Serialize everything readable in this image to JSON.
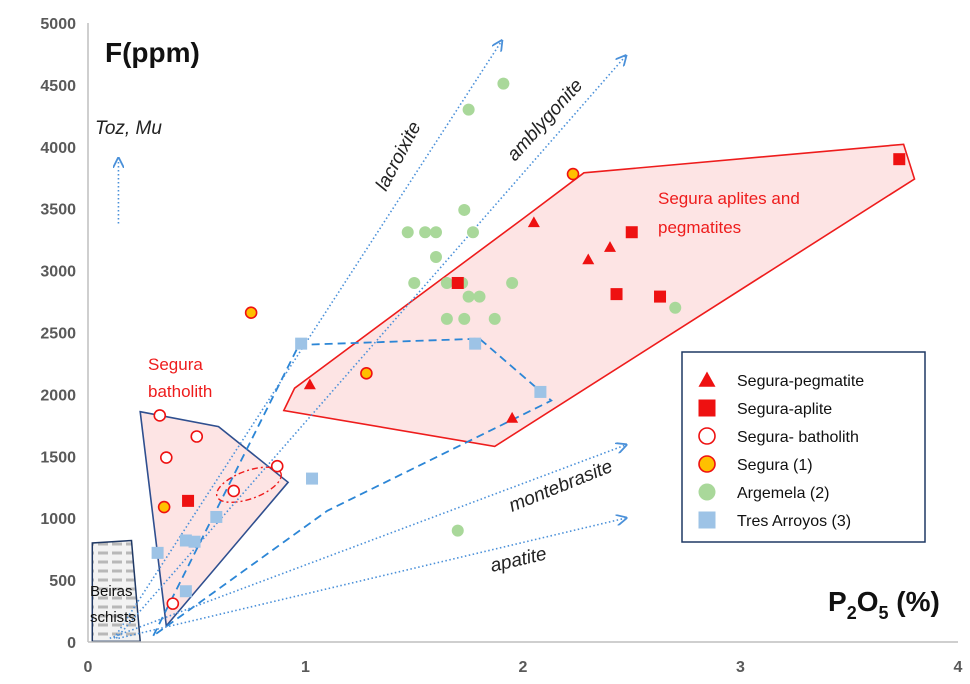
{
  "chart_data": {
    "type": "scatter",
    "title": "",
    "ylabel": "F(ppm)",
    "xlabel_main": "P",
    "xlabel_sub": "2",
    "xlabel_o": "O",
    "xlabel_sub2": "5",
    "xlabel_unit": " (%)",
    "xlim": [
      0,
      4
    ],
    "ylim": [
      0,
      5000
    ],
    "x_ticks": [
      0,
      1,
      2,
      3,
      4
    ],
    "y_ticks": [
      0,
      500,
      1000,
      1500,
      2000,
      2500,
      3000,
      3500,
      4000,
      4500,
      5000
    ],
    "grid": false,
    "legend_position": "right",
    "series": [
      {
        "name": "Segura-pegmatite",
        "marker": "triangle",
        "color": "#ee1111",
        "points": [
          [
            1.02,
            2080
          ],
          [
            1.95,
            1810
          ],
          [
            2.05,
            3390
          ],
          [
            2.3,
            3090
          ],
          [
            2.4,
            3190
          ]
        ]
      },
      {
        "name": "Segura-aplite",
        "marker": "square",
        "color": "#ee1111",
        "points": [
          [
            0.46,
            1140
          ],
          [
            1.7,
            2900
          ],
          [
            2.43,
            2810
          ],
          [
            2.5,
            3310
          ],
          [
            2.63,
            2790
          ],
          [
            3.73,
            3900
          ]
        ]
      },
      {
        "name": "Segura- batholith",
        "marker": "open-circle",
        "color": "#ee1111",
        "points": [
          [
            0.33,
            1830
          ],
          [
            0.36,
            1490
          ],
          [
            0.5,
            1660
          ],
          [
            0.39,
            310
          ],
          [
            0.67,
            1220
          ],
          [
            0.87,
            1420
          ]
        ]
      },
      {
        "name": "Segura (1)",
        "marker": "filled-circle",
        "color": "#ffc000",
        "edge": "#ee1111",
        "points": [
          [
            0.75,
            2660
          ],
          [
            0.35,
            1090
          ],
          [
            1.28,
            2170
          ],
          [
            2.23,
            3780
          ]
        ]
      },
      {
        "name": "Argemela (2)",
        "marker": "filled-circle",
        "color": "#a9d89a",
        "points": [
          [
            1.91,
            4510
          ],
          [
            1.75,
            4300
          ],
          [
            1.47,
            3310
          ],
          [
            1.55,
            3310
          ],
          [
            1.6,
            3310
          ],
          [
            1.73,
            3490
          ],
          [
            1.77,
            3310
          ],
          [
            1.6,
            3110
          ],
          [
            1.5,
            2900
          ],
          [
            1.65,
            2900
          ],
          [
            1.72,
            2900
          ],
          [
            1.75,
            2790
          ],
          [
            1.8,
            2790
          ],
          [
            1.95,
            2900
          ],
          [
            1.65,
            2610
          ],
          [
            1.73,
            2610
          ],
          [
            1.87,
            2610
          ],
          [
            2.7,
            2700
          ],
          [
            1.7,
            900
          ]
        ]
      },
      {
        "name": "Tres Arroyos (3)",
        "marker": "square",
        "color": "#9dc3e6",
        "points": [
          [
            0.98,
            2410
          ],
          [
            1.78,
            2410
          ],
          [
            2.08,
            2020
          ],
          [
            1.03,
            1320
          ],
          [
            0.59,
            1010
          ],
          [
            0.45,
            820
          ],
          [
            0.49,
            810
          ],
          [
            0.32,
            720
          ],
          [
            0.45,
            410
          ]
        ]
      }
    ],
    "annotations": {
      "toz_mu": "Toz, Mu",
      "lacroixite": "lacroixite",
      "amblygonite": "amblygonite",
      "montebrasite": "montebrasite",
      "apatite": "apatite",
      "segura_aplites_line1": "Segura aplites and",
      "segura_aplites_line2": "pegmatites",
      "segura_batholith_line1": "Segura",
      "segura_batholith_line2": "batholith",
      "beiras_line1": "Beiras",
      "beiras_line2": "schists"
    }
  },
  "colors": {
    "red_region_fill": "#fde4e4",
    "red_region_stroke": "#ee1c1c",
    "batholith_stroke": "#2f4f8f",
    "trend_arrow": "#4a90d9",
    "tres_arroyos_outline": "#2c86d6",
    "axis": "#bfbfbf",
    "legend_border": "#1f3864"
  }
}
